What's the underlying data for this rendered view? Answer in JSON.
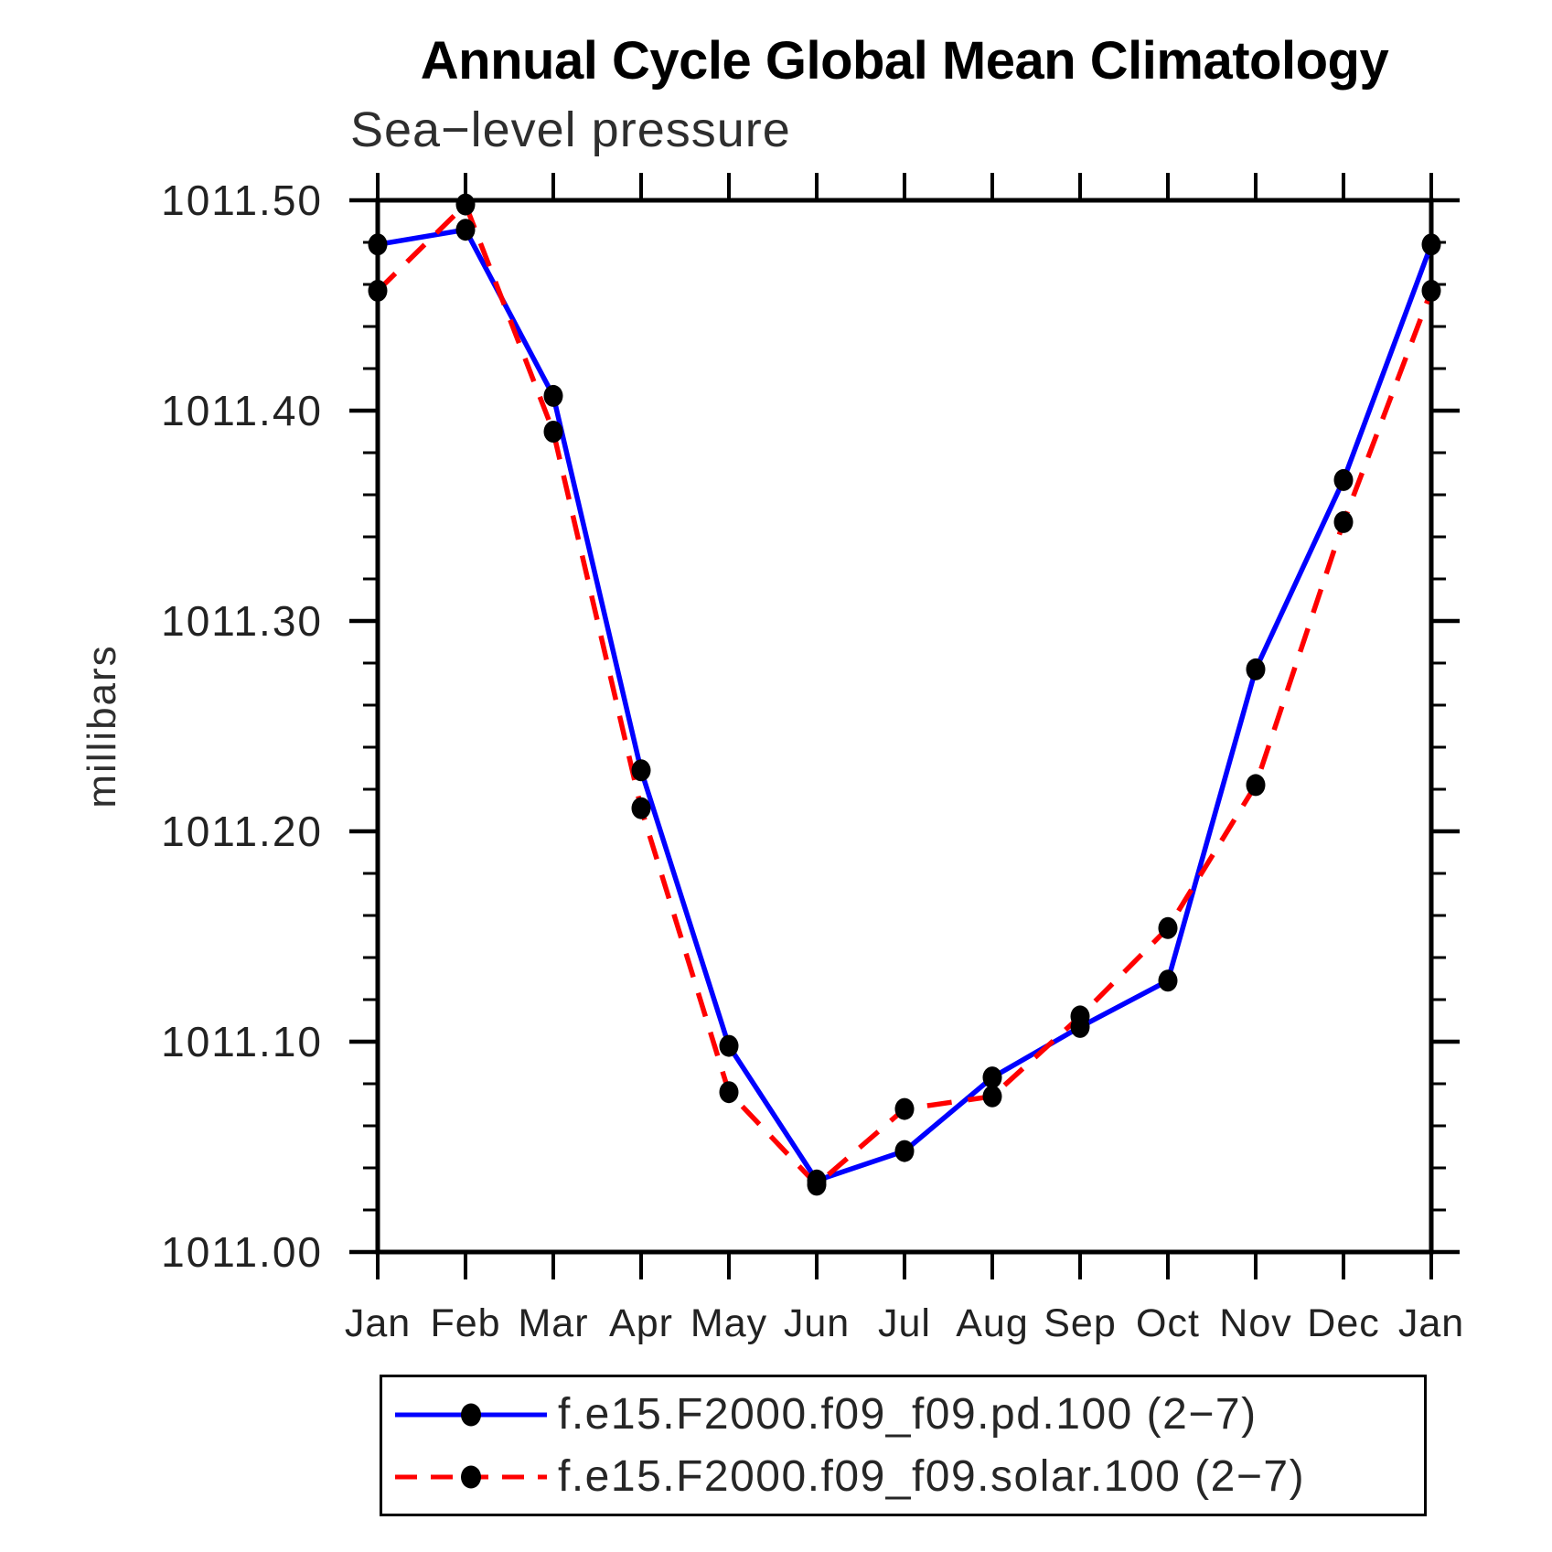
{
  "title": "Annual Cycle Global Mean Climatology",
  "subtitle": "Sea−level pressure",
  "ylabel": "millibars",
  "colors": {
    "series_pd": "#0000ff",
    "series_solar": "#ff0000",
    "marker": "#000000",
    "axis": "#000000"
  },
  "legend": {
    "entries": [
      {
        "label": "f.e15.F2000.f09_f09.pd.100 (2−7)",
        "color": "#0000ff",
        "style": "solid",
        "marker": "filled-circle"
      },
      {
        "label": "f.e15.F2000.f09_f09.solar.100 (2−7)",
        "color": "#ff0000",
        "style": "dashed",
        "marker": "filled-circle"
      }
    ]
  },
  "chart_data": {
    "type": "line",
    "x_categories": [
      "Jan",
      "Feb",
      "Mar",
      "Apr",
      "May",
      "Jun",
      "Jul",
      "Aug",
      "Sep",
      "Oct",
      "Nov",
      "Dec",
      "Jan"
    ],
    "series": [
      {
        "name": "f.e15.F2000.f09_f09.pd.100 (2−7)",
        "color": "#0000ff",
        "line_style": "solid",
        "marker": "filled-circle",
        "values": [
          1011.479,
          1011.486,
          1011.407,
          1011.229,
          1011.098,
          1011.034,
          1011.048,
          1011.083,
          1011.107,
          1011.129,
          1011.277,
          1011.367,
          1011.479
        ]
      },
      {
        "name": "f.e15.F2000.f09_f09.solar.100 (2−7)",
        "color": "#ff0000",
        "line_style": "dashed",
        "marker": "filled-circle",
        "values": [
          1011.457,
          1011.498,
          1011.39,
          1011.211,
          1011.076,
          1011.032,
          1011.068,
          1011.074,
          1011.112,
          1011.154,
          1011.222,
          1011.347,
          1011.457
        ]
      }
    ],
    "ylim": [
      1011.0,
      1011.5
    ],
    "ytick_major_labels": [
      "1011.00",
      "1011.10",
      "1011.20",
      "1011.30",
      "1011.40",
      "1011.50"
    ],
    "ytick_major_step": 0.1,
    "ytick_minor_step": 0.02,
    "grid": false,
    "legend_position": "below"
  }
}
